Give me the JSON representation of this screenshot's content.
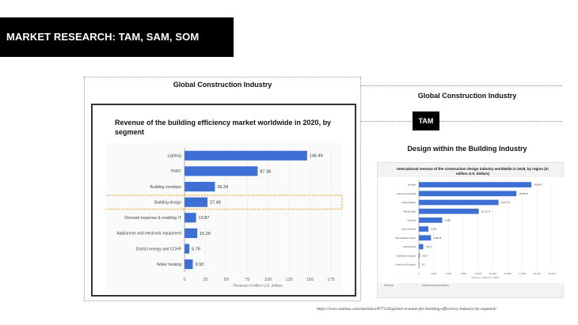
{
  "slide": {
    "title": "MARKET RESEARCH: TAM, SAM, SOM",
    "left_heading": "Global Construction Industry",
    "right_heading": "Global Construction Industry",
    "tam_label": "TAM",
    "design_heading": "Design within the Building Industry",
    "source": "https://www.statista.com/statistics/877159/global-revenue-for-building-efficiency-industry-by-segment/"
  },
  "colors": {
    "bar": "#3d6fd4",
    "highlight": "#f5a623"
  },
  "chart_data": [
    {
      "type": "bar",
      "orientation": "horizontal",
      "title": "Revenue of the building efficiency market worldwide in 2020, by segment",
      "categories": [
        "Lighting",
        "HVAC",
        "Building envelope",
        "Building design",
        "Demand response & enabling IT",
        "Appliances and electronic equipment",
        "District energy and CCHP",
        "Water heating"
      ],
      "values": [
        146.49,
        87.38,
        36.34,
        27.49,
        13.87,
        15.26,
        5.79,
        9.93
      ],
      "value_labels": [
        "146.49",
        "87.38",
        "36.34",
        "27.49",
        "13.87",
        "15.26",
        "5.79",
        "9.93"
      ],
      "xticks": [
        "0",
        "25",
        "50",
        "75",
        "100",
        "125",
        "150",
        "175"
      ],
      "xlim": [
        0,
        175
      ],
      "xlabel": "Revenue in billion U.S. dollars",
      "highlighted_category": "Building design"
    },
    {
      "type": "bar",
      "orientation": "horizontal",
      "title": "International revenue of the construction design industry worldwide in 2018, by region (in million U.S. dollars)",
      "categories": [
        "Europe",
        "Asia and Australia",
        "United States",
        "Middle East",
        "Canada",
        "Latin America",
        "Sub-Saharan Africa",
        "North Africa",
        "Caribbean Islands",
        "Arctic and Antarctic"
      ],
      "values": [
        19024.7,
        16502.5,
        13477.9,
        10127.4,
        3956,
        1606,
        2051.8,
        741.9,
        142.7,
        9.3
      ],
      "value_labels": [
        "19,024.7",
        "16,502.5",
        "13,477.9",
        "10,127.4",
        "3,956",
        "1,606",
        "2,051.8",
        "741.9",
        "142.7",
        "9.3"
      ],
      "xticks": [
        "0",
        "2,500",
        "5,000",
        "7,500",
        "10,000",
        "12,500",
        "15,000",
        "17,500",
        "20,000",
        "22,500"
      ],
      "xlim": [
        0,
        22500
      ],
      "xlabel": "Revenue in million U.S. dollars",
      "footer_left": "Statista",
      "footer_right": "Additional Information"
    }
  ]
}
